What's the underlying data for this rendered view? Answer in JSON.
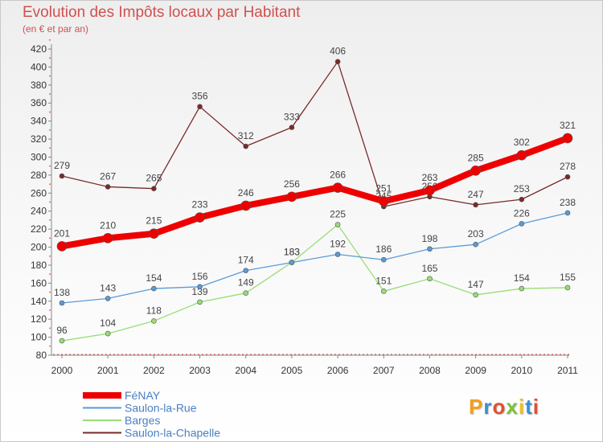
{
  "header": {
    "title": "Evolution des Impôts locaux par Habitant",
    "subtitle": "(en € et par an)"
  },
  "logo": {
    "text": "Proxiti"
  },
  "chart_data": {
    "type": "line",
    "title": "Evolution des Impôts locaux par Habitant",
    "subtitle": "(en € et par an)",
    "x": [
      "2000",
      "2001",
      "2002",
      "2003",
      "2004",
      "2005",
      "2006",
      "2007",
      "2008",
      "2009",
      "2010",
      "2011"
    ],
    "ylim": [
      80,
      420
    ],
    "yticks": [
      80,
      100,
      120,
      140,
      160,
      180,
      200,
      220,
      240,
      260,
      280,
      300,
      320,
      340,
      360,
      380,
      400,
      420
    ],
    "grid": false,
    "legend": "bottom-left",
    "series": [
      {
        "name": "Saulon-la-Chapelle",
        "color": "#7a2a2a",
        "values": [
          279,
          267,
          265,
          356,
          312,
          333,
          406,
          245,
          256,
          247,
          253,
          278
        ]
      },
      {
        "name": "Barges",
        "color": "#99dd77",
        "values": [
          96,
          104,
          118,
          139,
          149,
          183,
          225,
          151,
          165,
          147,
          154,
          155
        ]
      },
      {
        "name": "Saulon-la-Rue",
        "color": "#5b9bd5",
        "values": [
          138,
          143,
          154,
          156,
          174,
          183,
          192,
          186,
          198,
          203,
          226,
          238
        ]
      },
      {
        "name": "FéNAY",
        "color": "#ee0000",
        "values": [
          201,
          210,
          215,
          233,
          246,
          256,
          266,
          251,
          263,
          285,
          302,
          321
        ]
      }
    ],
    "legend_order": [
      "FéNAY",
      "Saulon-la-Rue",
      "Barges",
      "Saulon-la-Chapelle"
    ]
  }
}
